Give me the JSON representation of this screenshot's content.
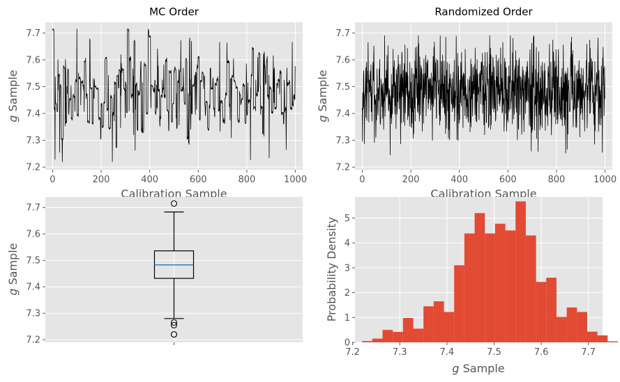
{
  "chart_data": [
    {
      "type": "line",
      "title": "MC Order",
      "xlabel": "Calibration Sample",
      "ylabel_var": "g",
      "ylabel_rest": " Sample",
      "xlim": [
        -30,
        1030
      ],
      "ylim": [
        7.19,
        7.74
      ],
      "xticks": [
        0,
        200,
        400,
        600,
        800,
        1000
      ],
      "yticks": [
        7.2,
        7.3,
        7.4,
        7.5,
        7.6,
        7.7
      ],
      "ytick_labels": [
        "7.2",
        "7.3",
        "7.4",
        "7.5",
        "7.6",
        "7.7"
      ],
      "n_points": 1000,
      "value_range": [
        7.22,
        7.715
      ],
      "line_color": "#000000",
      "style": "correlated runs (sequential Monte Carlo chain)"
    },
    {
      "type": "line",
      "title": "Randomized Order",
      "xlabel": "Calibration Sample",
      "ylabel_var": "g",
      "ylabel_rest": " Sample",
      "xlim": [
        -30,
        1030
      ],
      "ylim": [
        7.19,
        7.74
      ],
      "xticks": [
        0,
        200,
        400,
        600,
        800,
        1000
      ],
      "yticks": [
        7.2,
        7.3,
        7.4,
        7.5,
        7.6,
        7.7
      ],
      "ytick_labels": [
        "7.2",
        "7.3",
        "7.4",
        "7.5",
        "7.6",
        "7.7"
      ],
      "n_points": 1000,
      "value_range": [
        7.22,
        7.715
      ],
      "line_color": "#000000",
      "style": "uncorrelated (shuffled)"
    },
    {
      "type": "box",
      "ylabel_var": "g",
      "ylabel_rest": " Sample",
      "ylim": [
        7.19,
        7.74
      ],
      "yticks": [
        7.2,
        7.3,
        7.4,
        7.5,
        7.6,
        7.7
      ],
      "ytick_labels": [
        "7.2",
        "7.3",
        "7.4",
        "7.5",
        "7.6",
        "7.7"
      ],
      "whisker_low": 7.28,
      "q1": 7.432,
      "median": 7.483,
      "q3": 7.536,
      "whisker_high": 7.683,
      "outliers": [
        7.715,
        7.265,
        7.255,
        7.22
      ],
      "median_color": "#1f77b4"
    },
    {
      "type": "histogram",
      "xlabel_var": "g",
      "xlabel_rest": " Sample",
      "ylabel": "Probability Density",
      "xlim": [
        7.205,
        7.73
      ],
      "ylim": [
        0,
        5.85
      ],
      "xticks": [
        7.2,
        7.3,
        7.4,
        7.5,
        7.6,
        7.7
      ],
      "xtick_labels": [
        "7.2",
        "7.3",
        "7.4",
        "7.5",
        "7.6",
        "7.7"
      ],
      "yticks": [
        0,
        1,
        2,
        3,
        4,
        5
      ],
      "ytick_labels": [
        "0",
        "1",
        "2",
        "3",
        "4",
        "5"
      ],
      "bin_start": 7.22,
      "bin_width": 0.0217,
      "densities": [
        0.05,
        0.15,
        0.5,
        0.42,
        0.98,
        0.55,
        1.45,
        1.65,
        1.22,
        3.1,
        4.38,
        5.2,
        4.38,
        4.77,
        4.5,
        5.67,
        4.3,
        2.43,
        2.6,
        1.02,
        1.4,
        1.22,
        0.43,
        0.28,
        0.04
      ],
      "bar_color": "#E24A33"
    }
  ]
}
